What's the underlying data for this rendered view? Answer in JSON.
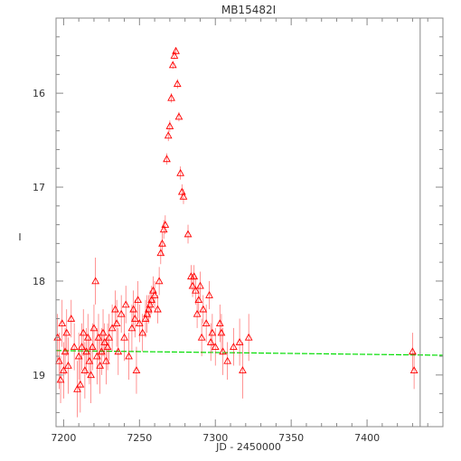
{
  "chart_data": {
    "type": "scatter",
    "title": "MB15482I",
    "xlabel": "JD - 2450000",
    "ylabel": "I",
    "xlim": [
      7195,
      7450
    ],
    "ylim": [
      19.55,
      15.2
    ],
    "y_inverted": true,
    "grid": false,
    "x_ticks": [
      7200,
      7250,
      7300,
      7350,
      7400
    ],
    "x_tick_labels": [
      "7200",
      "7250",
      "7300",
      "7350",
      "7400"
    ],
    "y_ticks": [
      16,
      17,
      18,
      19
    ],
    "y_tick_labels": [
      "16",
      "17",
      "18",
      "19"
    ],
    "marker": "triangle",
    "vertical_line_x": 7435,
    "colors": {
      "points": "#ff0000",
      "errorbars": "#ff0000",
      "baseline": "#00dd00",
      "axes": "#888888",
      "text": "#333333"
    },
    "baseline": {
      "x": [
        7195,
        7450
      ],
      "y": [
        18.74,
        18.79
      ]
    },
    "points": [
      {
        "x": 7196,
        "y": 18.6,
        "e": 0.25
      },
      {
        "x": 7197,
        "y": 18.85,
        "e": 0.3
      },
      {
        "x": 7198,
        "y": 19.05,
        "e": 0.25
      },
      {
        "x": 7199,
        "y": 18.45,
        "e": 0.25
      },
      {
        "x": 7200,
        "y": 18.95,
        "e": 0.3
      },
      {
        "x": 7201,
        "y": 18.75,
        "e": 0.25
      },
      {
        "x": 7202,
        "y": 18.55,
        "e": 0.25
      },
      {
        "x": 7203,
        "y": 18.9,
        "e": 0.3
      },
      {
        "x": 7205,
        "y": 18.4,
        "e": 0.2
      },
      {
        "x": 7207,
        "y": 18.7,
        "e": 0.25
      },
      {
        "x": 7209,
        "y": 19.15,
        "e": 0.3
      },
      {
        "x": 7210,
        "y": 18.8,
        "e": 0.25
      },
      {
        "x": 7211,
        "y": 19.1,
        "e": 0.3
      },
      {
        "x": 7212,
        "y": 18.7,
        "e": 0.25
      },
      {
        "x": 7213,
        "y": 18.55,
        "e": 0.25
      },
      {
        "x": 7214,
        "y": 18.95,
        "e": 0.3
      },
      {
        "x": 7215,
        "y": 18.75,
        "e": 0.25
      },
      {
        "x": 7216,
        "y": 18.6,
        "e": 0.25
      },
      {
        "x": 7217,
        "y": 18.85,
        "e": 0.25
      },
      {
        "x": 7218,
        "y": 19.0,
        "e": 0.3
      },
      {
        "x": 7219,
        "y": 18.7,
        "e": 0.25
      },
      {
        "x": 7220,
        "y": 18.5,
        "e": 0.25
      },
      {
        "x": 7221,
        "y": 18.0,
        "e": 0.25
      },
      {
        "x": 7222,
        "y": 18.8,
        "e": 0.3
      },
      {
        "x": 7223,
        "y": 18.6,
        "e": 0.25
      },
      {
        "x": 7224,
        "y": 18.9,
        "e": 0.3
      },
      {
        "x": 7225,
        "y": 18.75,
        "e": 0.25
      },
      {
        "x": 7226,
        "y": 18.55,
        "e": 0.25
      },
      {
        "x": 7227,
        "y": 18.65,
        "e": 0.2
      },
      {
        "x": 7228,
        "y": 18.85,
        "e": 0.25
      },
      {
        "x": 7229,
        "y": 18.7,
        "e": 0.25
      },
      {
        "x": 7230,
        "y": 18.6,
        "e": 0.25
      },
      {
        "x": 7232,
        "y": 18.5,
        "e": 0.25
      },
      {
        "x": 7234,
        "y": 18.3,
        "e": 0.2
      },
      {
        "x": 7235,
        "y": 18.45,
        "e": 0.25
      },
      {
        "x": 7236,
        "y": 18.75,
        "e": 0.25
      },
      {
        "x": 7238,
        "y": 18.35,
        "e": 0.2
      },
      {
        "x": 7240,
        "y": 18.6,
        "e": 0.25
      },
      {
        "x": 7241,
        "y": 18.25,
        "e": 0.2
      },
      {
        "x": 7243,
        "y": 18.8,
        "e": 0.25
      },
      {
        "x": 7245,
        "y": 18.5,
        "e": 0.25
      },
      {
        "x": 7246,
        "y": 18.3,
        "e": 0.2
      },
      {
        "x": 7247,
        "y": 18.4,
        "e": 0.2
      },
      {
        "x": 7248,
        "y": 18.95,
        "e": 0.25
      },
      {
        "x": 7249,
        "y": 18.2,
        "e": 0.2
      },
      {
        "x": 7250,
        "y": 18.45,
        "e": 0.2
      },
      {
        "x": 7252,
        "y": 18.55,
        "e": 0.2
      },
      {
        "x": 7254,
        "y": 18.4,
        "e": 0.2
      },
      {
        "x": 7255,
        "y": 18.35,
        "e": 0.2
      },
      {
        "x": 7256,
        "y": 18.3,
        "e": 0.15
      },
      {
        "x": 7257,
        "y": 18.25,
        "e": 0.15
      },
      {
        "x": 7258,
        "y": 18.2,
        "e": 0.15
      },
      {
        "x": 7259,
        "y": 18.1,
        "e": 0.15
      },
      {
        "x": 7260,
        "y": 18.15,
        "e": 0.15
      },
      {
        "x": 7262,
        "y": 18.3,
        "e": 0.15
      },
      {
        "x": 7263,
        "y": 18.0,
        "e": 0.15
      },
      {
        "x": 7264,
        "y": 17.7,
        "e": 0.12
      },
      {
        "x": 7265,
        "y": 17.6,
        "e": 0.12
      },
      {
        "x": 7266,
        "y": 17.45,
        "e": 0.1
      },
      {
        "x": 7267,
        "y": 17.4,
        "e": 0.1
      },
      {
        "x": 7268,
        "y": 16.7,
        "e": 0.06
      },
      {
        "x": 7269,
        "y": 16.45,
        "e": 0.06
      },
      {
        "x": 7270,
        "y": 16.35,
        "e": 0.06
      },
      {
        "x": 7271,
        "y": 16.05,
        "e": 0.05
      },
      {
        "x": 7272,
        "y": 15.7,
        "e": 0.04
      },
      {
        "x": 7273,
        "y": 15.6,
        "e": 0.04
      },
      {
        "x": 7274,
        "y": 15.55,
        "e": 0.04
      },
      {
        "x": 7275,
        "y": 15.9,
        "e": 0.05
      },
      {
        "x": 7276,
        "y": 16.25,
        "e": 0.05
      },
      {
        "x": 7277,
        "y": 16.85,
        "e": 0.07
      },
      {
        "x": 7278,
        "y": 17.05,
        "e": 0.08
      },
      {
        "x": 7279,
        "y": 17.1,
        "e": 0.08
      },
      {
        "x": 7282,
        "y": 17.5,
        "e": 0.1
      },
      {
        "x": 7284,
        "y": 17.95,
        "e": 0.12
      },
      {
        "x": 7285,
        "y": 18.05,
        "e": 0.12
      },
      {
        "x": 7286,
        "y": 17.95,
        "e": 0.12
      },
      {
        "x": 7287,
        "y": 18.1,
        "e": 0.15
      },
      {
        "x": 7288,
        "y": 18.35,
        "e": 0.15
      },
      {
        "x": 7289,
        "y": 18.2,
        "e": 0.15
      },
      {
        "x": 7290,
        "y": 18.05,
        "e": 0.15
      },
      {
        "x": 7291,
        "y": 18.6,
        "e": 0.2
      },
      {
        "x": 7292,
        "y": 18.3,
        "e": 0.15
      },
      {
        "x": 7294,
        "y": 18.45,
        "e": 0.2
      },
      {
        "x": 7296,
        "y": 18.15,
        "e": 0.15
      },
      {
        "x": 7297,
        "y": 18.65,
        "e": 0.2
      },
      {
        "x": 7298,
        "y": 18.55,
        "e": 0.2
      },
      {
        "x": 7300,
        "y": 18.7,
        "e": 0.2
      },
      {
        "x": 7303,
        "y": 18.45,
        "e": 0.2
      },
      {
        "x": 7304,
        "y": 18.55,
        "e": 0.2
      },
      {
        "x": 7305,
        "y": 18.75,
        "e": 0.25
      },
      {
        "x": 7308,
        "y": 18.85,
        "e": 0.2
      },
      {
        "x": 7312,
        "y": 18.7,
        "e": 0.2
      },
      {
        "x": 7316,
        "y": 18.65,
        "e": 0.25
      },
      {
        "x": 7318,
        "y": 18.95,
        "e": 0.3
      },
      {
        "x": 7322,
        "y": 18.6,
        "e": 0.25
      },
      {
        "x": 7430,
        "y": 18.75,
        "e": 0.2
      },
      {
        "x": 7431,
        "y": 18.95,
        "e": 0.2
      }
    ]
  }
}
